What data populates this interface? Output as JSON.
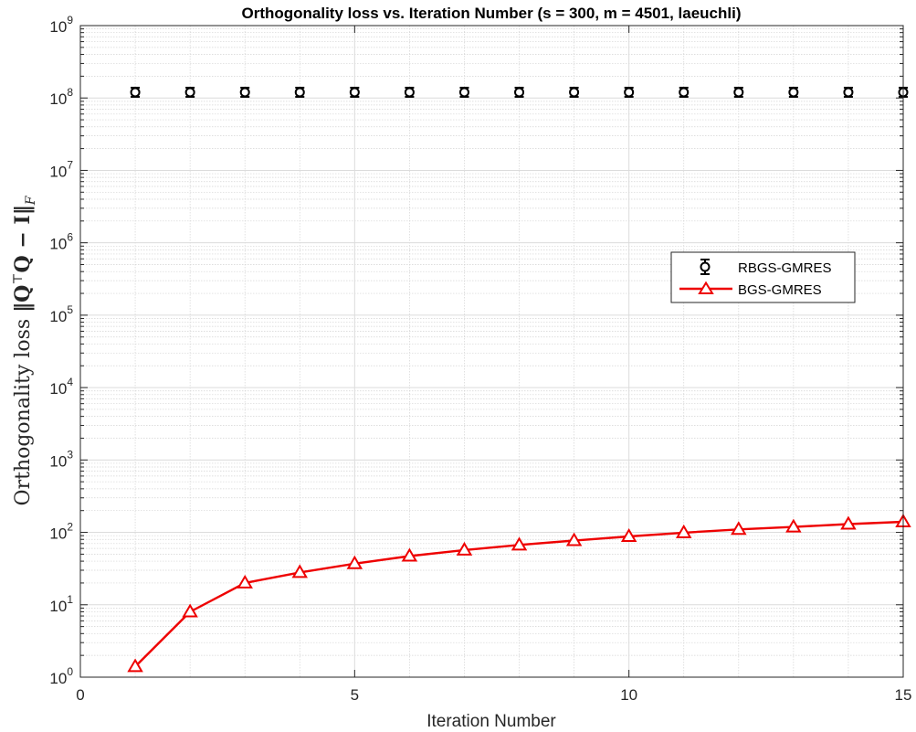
{
  "chart_data": {
    "type": "line",
    "title": "Orthogonality loss vs. Iteration Number (s = 300, m = 4501, laeuchli)",
    "xlabel": "Iteration Number",
    "ylabel": {
      "prefix": "Orthogonality loss ",
      "math": "‖Q",
      "sup": "⊤",
      "math2": "Q − I‖",
      "sub": "F"
    },
    "xlim": [
      0,
      15
    ],
    "ylim": [
      1,
      1000000000
    ],
    "yscale": "log",
    "grid": true,
    "legend_position": "right",
    "x_ticks": [
      "0",
      "5",
      "10",
      "15"
    ],
    "y_ticks": [
      {
        "base": "10",
        "exp": "0"
      },
      {
        "base": "10",
        "exp": "1"
      },
      {
        "base": "10",
        "exp": "2"
      },
      {
        "base": "10",
        "exp": "3"
      },
      {
        "base": "10",
        "exp": "4"
      },
      {
        "base": "10",
        "exp": "5"
      },
      {
        "base": "10",
        "exp": "6"
      },
      {
        "base": "10",
        "exp": "7"
      },
      {
        "base": "10",
        "exp": "8"
      },
      {
        "base": "10",
        "exp": "9"
      }
    ],
    "x": [
      1,
      2,
      3,
      4,
      5,
      6,
      7,
      8,
      9,
      10,
      11,
      12,
      13,
      14,
      15
    ],
    "series": [
      {
        "name": "RBGS-GMRES",
        "color": "#000000",
        "marker": "circle-errorbar",
        "line": false,
        "values": [
          120000000,
          120000000,
          120000000,
          120000000,
          120000000,
          120000000,
          120000000,
          120000000,
          120000000,
          120000000,
          120000000,
          120000000,
          120000000,
          120000000,
          120000000
        ]
      },
      {
        "name": "BGS-GMRES",
        "color": "#ee0000",
        "marker": "triangle",
        "line": true,
        "values": [
          1.4,
          8,
          20,
          28,
          37,
          47,
          57,
          67,
          77,
          88,
          99,
          110,
          119,
          130,
          140
        ]
      }
    ]
  }
}
